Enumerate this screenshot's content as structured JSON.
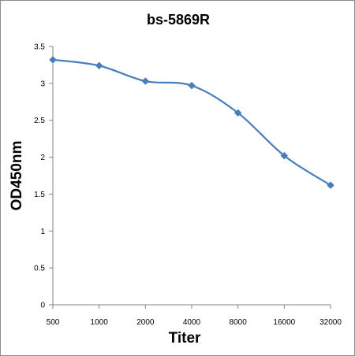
{
  "chart_data": {
    "type": "line",
    "title": "bs-5869R",
    "xlabel": "Titer",
    "ylabel": "OD450nm",
    "x": [
      "500",
      "1000",
      "2000",
      "4000",
      "8000",
      "16000",
      "32000"
    ],
    "series": [
      {
        "values": [
          3.32,
          3.24,
          3.03,
          2.97,
          2.6,
          2.02,
          1.62
        ],
        "color": "#4a7ebb"
      }
    ],
    "ylim": [
      0,
      3.5
    ],
    "yticks": [
      "0",
      "0.5",
      "1",
      "1.5",
      "2",
      "2.5",
      "3",
      "3.5"
    ],
    "grid": false,
    "legend": "none",
    "marker": "diamond"
  }
}
